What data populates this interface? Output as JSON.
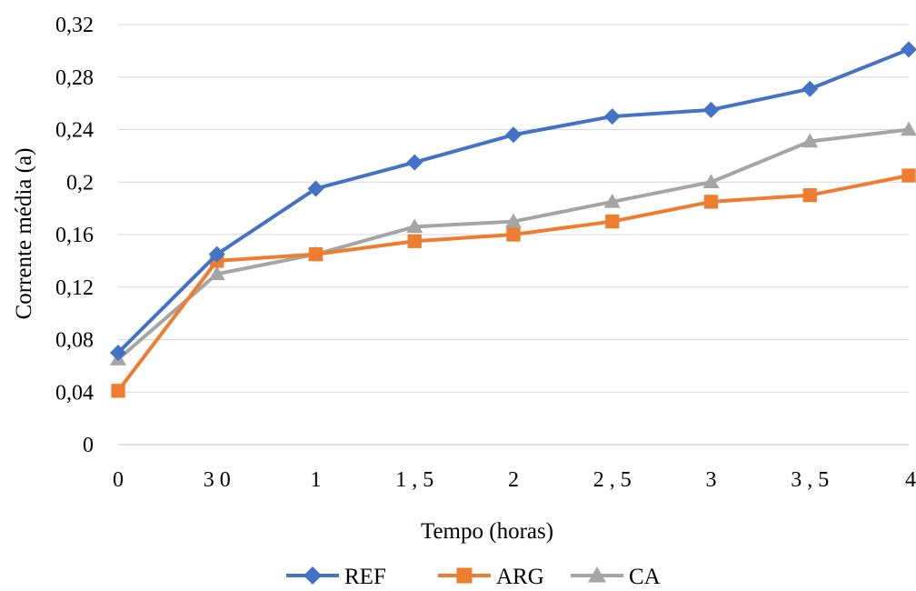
{
  "chart_data": {
    "type": "line",
    "xlabel": "Tempo (horas)",
    "ylabel": "Corrente média (a)",
    "categories": [
      "0",
      "3 0",
      "1",
      "1 , 5",
      "2",
      "2 , 5",
      "3",
      "3 , 5",
      "4"
    ],
    "y_ticks": [
      "0",
      "0,04",
      "0,08",
      "0,12",
      "0,16",
      "0,2",
      "0,24",
      "0,28",
      "0,32"
    ],
    "ylim": [
      0,
      0.32
    ],
    "grid": true,
    "legend": "bottom",
    "series": [
      {
        "name": "REF",
        "color": "#4472c4",
        "marker": "diamond",
        "values": [
          0.07,
          0.145,
          0.195,
          0.215,
          0.236,
          0.25,
          0.255,
          0.271,
          0.301
        ]
      },
      {
        "name": "ARG",
        "color": "#ed7d31",
        "marker": "square",
        "values": [
          0.041,
          0.14,
          0.145,
          0.155,
          0.16,
          0.17,
          0.185,
          0.19,
          0.205
        ]
      },
      {
        "name": "CA",
        "color": "#a5a5a5",
        "marker": "triangle",
        "values": [
          0.065,
          0.13,
          0.145,
          0.166,
          0.17,
          0.185,
          0.2,
          0.231,
          0.24
        ]
      }
    ]
  }
}
